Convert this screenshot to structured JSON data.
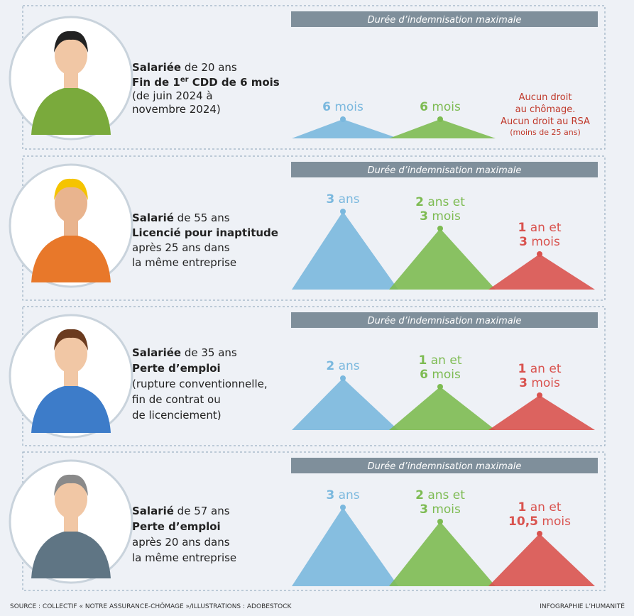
{
  "panels": [
    {
      "header": "Durée d’indemnisation maximale",
      "person": [
        [
          {
            "bold": "Salariée"
          },
          {
            "regular": " de 20 ans"
          }
        ],
        [
          {
            "bold": "Fin de 1"
          },
          {
            "sup": "er"
          },
          {
            "bold": " CDD de 6 mois"
          }
        ],
        [
          {
            "regular": "(de juin 2024 à"
          }
        ],
        [
          {
            "regular": "novembre 2024)"
          }
        ]
      ],
      "durations": [
        {
          "color": "#7ab8de",
          "lines": [
            {
              "num": "6",
              "unit": " mois"
            }
          ]
        },
        {
          "color": "#7dbb52",
          "lines": [
            {
              "num": "6",
              "unit": " mois"
            }
          ]
        }
      ],
      "note": {
        "color": "#c0392b",
        "lines": [
          "Aucun droit",
          "au chômage.",
          "Aucun droit au RSA",
          "(moins de 25 ans)"
        ]
      }
    },
    {
      "header": "Durée d’indemnisation maximale",
      "person": [
        [
          {
            "bold": "Salarié"
          },
          {
            "regular": " de 55 ans"
          }
        ],
        [
          {
            "bold": "Licencié pour inaptitude"
          }
        ],
        [
          {
            "regular": "après 25 ans dans"
          }
        ],
        [
          {
            "regular": "la même entreprise"
          }
        ]
      ],
      "durations": [
        {
          "color": "#7ab8de",
          "lines": [
            {
              "num": "3",
              "unit": " ans"
            }
          ]
        },
        {
          "color": "#7dbb52",
          "lines": [
            {
              "num": "2",
              "unit": " ans et"
            },
            {
              "num": "3",
              "unit": " mois"
            }
          ]
        },
        {
          "color": "#d9534f",
          "lines": [
            {
              "num": "1",
              "unit": " an et"
            },
            {
              "num": "3",
              "unit": " mois"
            }
          ]
        }
      ]
    },
    {
      "header": "Durée d’indemnisation maximale",
      "person": [
        [
          {
            "bold": "Salariée"
          },
          {
            "regular": " de 35 ans"
          }
        ],
        [
          {
            "bold": "Perte d’emploi"
          }
        ],
        [
          {
            "regular": "(rupture conventionnelle,"
          }
        ],
        [
          {
            "regular": "fin de contrat ou"
          }
        ],
        [
          {
            "regular": "de licenciement)"
          }
        ]
      ],
      "durations": [
        {
          "color": "#7ab8de",
          "lines": [
            {
              "num": "2",
              "unit": " ans"
            }
          ]
        },
        {
          "color": "#7dbb52",
          "lines": [
            {
              "num": "1",
              "unit": " an et"
            },
            {
              "num": "6",
              "unit": " mois"
            }
          ]
        },
        {
          "color": "#d9534f",
          "lines": [
            {
              "num": "1",
              "unit": " an et"
            },
            {
              "num": "3",
              "unit": " mois"
            }
          ]
        }
      ]
    },
    {
      "header": "Durée d’indemnisation maximale",
      "person": [
        [
          {
            "bold": "Salarié"
          },
          {
            "regular": " de 57 ans"
          }
        ],
        [
          {
            "bold": "Perte d’emploi"
          }
        ],
        [
          {
            "regular": "après 20 ans dans"
          }
        ],
        [
          {
            "regular": "la même entreprise"
          }
        ]
      ],
      "durations": [
        {
          "color": "#7ab8de",
          "lines": [
            {
              "num": "3",
              "unit": " ans"
            }
          ]
        },
        {
          "color": "#7dbb52",
          "lines": [
            {
              "num": "2",
              "unit": " ans et"
            },
            {
              "num": "3",
              "unit": " mois"
            }
          ]
        },
        {
          "color": "#d9534f",
          "lines": [
            {
              "num": "1",
              "unit": " an et"
            },
            {
              "num": "10,5",
              "unit": " mois"
            }
          ]
        }
      ]
    }
  ],
  "footer": {
    "source": "SOURCE : COLLECTIF « NOTRE ASSURANCE-CHÔMAGE »/ILLUSTRATIONS : ADOBESTOCK",
    "credit": "INFOGRAPHIE L’HUMANITÉ"
  }
}
